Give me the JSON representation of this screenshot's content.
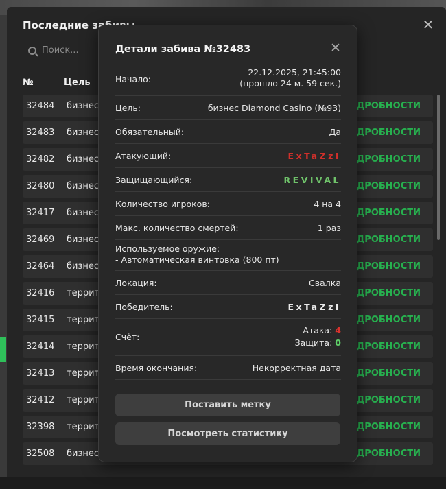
{
  "back": {
    "title": "Последние забивы",
    "close_glyph": "✕",
    "search_placeholder": "Поиск...",
    "col_id": "№",
    "col_goal": "Цель",
    "more_label": "ПОДРОБНОСТИ",
    "rows": [
      {
        "id": "32484",
        "goal": "бизнес"
      },
      {
        "id": "32483",
        "goal": "бизнес"
      },
      {
        "id": "32482",
        "goal": "бизнес"
      },
      {
        "id": "32480",
        "goal": "бизнес"
      },
      {
        "id": "32417",
        "goal": "бизнес"
      },
      {
        "id": "32469",
        "goal": "бизнес"
      },
      {
        "id": "32464",
        "goal": "бизнес"
      },
      {
        "id": "32416",
        "goal": "террит"
      },
      {
        "id": "32415",
        "goal": "террит"
      },
      {
        "id": "32414",
        "goal": "террит"
      },
      {
        "id": "32413",
        "goal": "террит"
      },
      {
        "id": "32412",
        "goal": "террит"
      },
      {
        "id": "32398",
        "goal": "террит"
      },
      {
        "id": "32508",
        "goal": "бизнес"
      }
    ]
  },
  "modal": {
    "title": "Детали забива №32483",
    "close_glyph": "✕",
    "start_label": "Начало:",
    "start_date": "22.12.2025, 21:45:00",
    "start_ago": "(прошло 24 м. 59 сек.)",
    "goal_label": "Цель:",
    "goal_value": "бизнес Diamond Casino (№93)",
    "mandatory_label": "Обязательный:",
    "mandatory_value": "Да",
    "attacker_label": "Атакующий:",
    "attacker_value": "ExTaZzI",
    "defender_label": "Защищающийся:",
    "defender_value": "REVIVAL",
    "players_label": "Количество игроков:",
    "players_value": "4 на 4",
    "deaths_label": "Макс. количество смертей:",
    "deaths_value": "1 раз",
    "weapon_label": "Используемое оружие:",
    "weapon_value": "- Автоматическая винтовка (800 пт)",
    "location_label": "Локация:",
    "location_value": "Свалка",
    "winner_label": "Победитель:",
    "winner_value": "ExTaZzI",
    "score_label": "Счёт:",
    "score_attack_label": "Атака:",
    "score_attack_value": "4",
    "score_defense_label": "Защита:",
    "score_defense_value": "0",
    "end_label": "Время окончания:",
    "end_value": "Некорректная дата",
    "btn_mark": "Поставить метку",
    "btn_stats": "Посмотреть статистику"
  },
  "colors": {
    "accent_green": "#27b14f",
    "attack_red": "#d0302b",
    "defense_green": "#6fc26a"
  }
}
